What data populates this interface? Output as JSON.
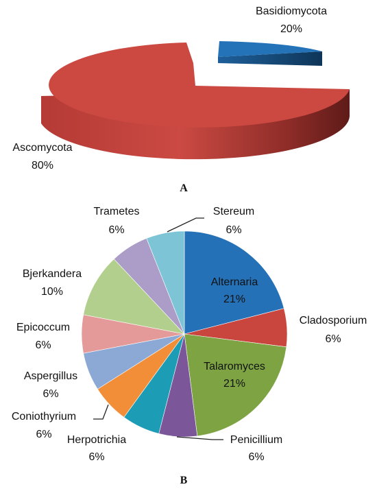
{
  "chart_data": [
    {
      "type": "pie",
      "style": "3d-exploded",
      "panel_label": "A",
      "slices": [
        {
          "label": "Basidiomycota",
          "value": 20,
          "value_label": "20%",
          "color": "#2471B7"
        },
        {
          "label": "Ascomycota",
          "value": 80,
          "value_label": "80%",
          "color": "#C9463F"
        }
      ]
    },
    {
      "type": "pie",
      "style": "2d",
      "panel_label": "B",
      "slices": [
        {
          "label": "Alternaria",
          "value": 21,
          "value_label": "21%",
          "color": "#2471B7"
        },
        {
          "label": "Cladosporium",
          "value": 6,
          "value_label": "6%",
          "color": "#C9463F"
        },
        {
          "label": "Talaromyces",
          "value": 21,
          "value_label": "21%",
          "color": "#7DA343"
        },
        {
          "label": "Penicillium",
          "value": 6,
          "value_label": "6%",
          "color": "#7B5698"
        },
        {
          "label": "Herpotrichia",
          "value": 6,
          "value_label": "6%",
          "color": "#1D9CB5"
        },
        {
          "label": "Coniothyrium",
          "value": 6,
          "value_label": "6%",
          "color": "#F28E38"
        },
        {
          "label": "Aspergillus",
          "value": 6,
          "value_label": "6%",
          "color": "#8BA9D4"
        },
        {
          "label": "Epicoccum",
          "value": 6,
          "value_label": "6%",
          "color": "#E59A9A"
        },
        {
          "label": "Bjerkandera",
          "value": 10,
          "value_label": "10%",
          "color": "#B3CF8E"
        },
        {
          "label": "Trametes",
          "value": 6,
          "value_label": "6%",
          "color": "#AB9DC7"
        },
        {
          "label": "Stereum",
          "value": 6,
          "value_label": "6%",
          "color": "#7DC4D6"
        }
      ]
    }
  ]
}
